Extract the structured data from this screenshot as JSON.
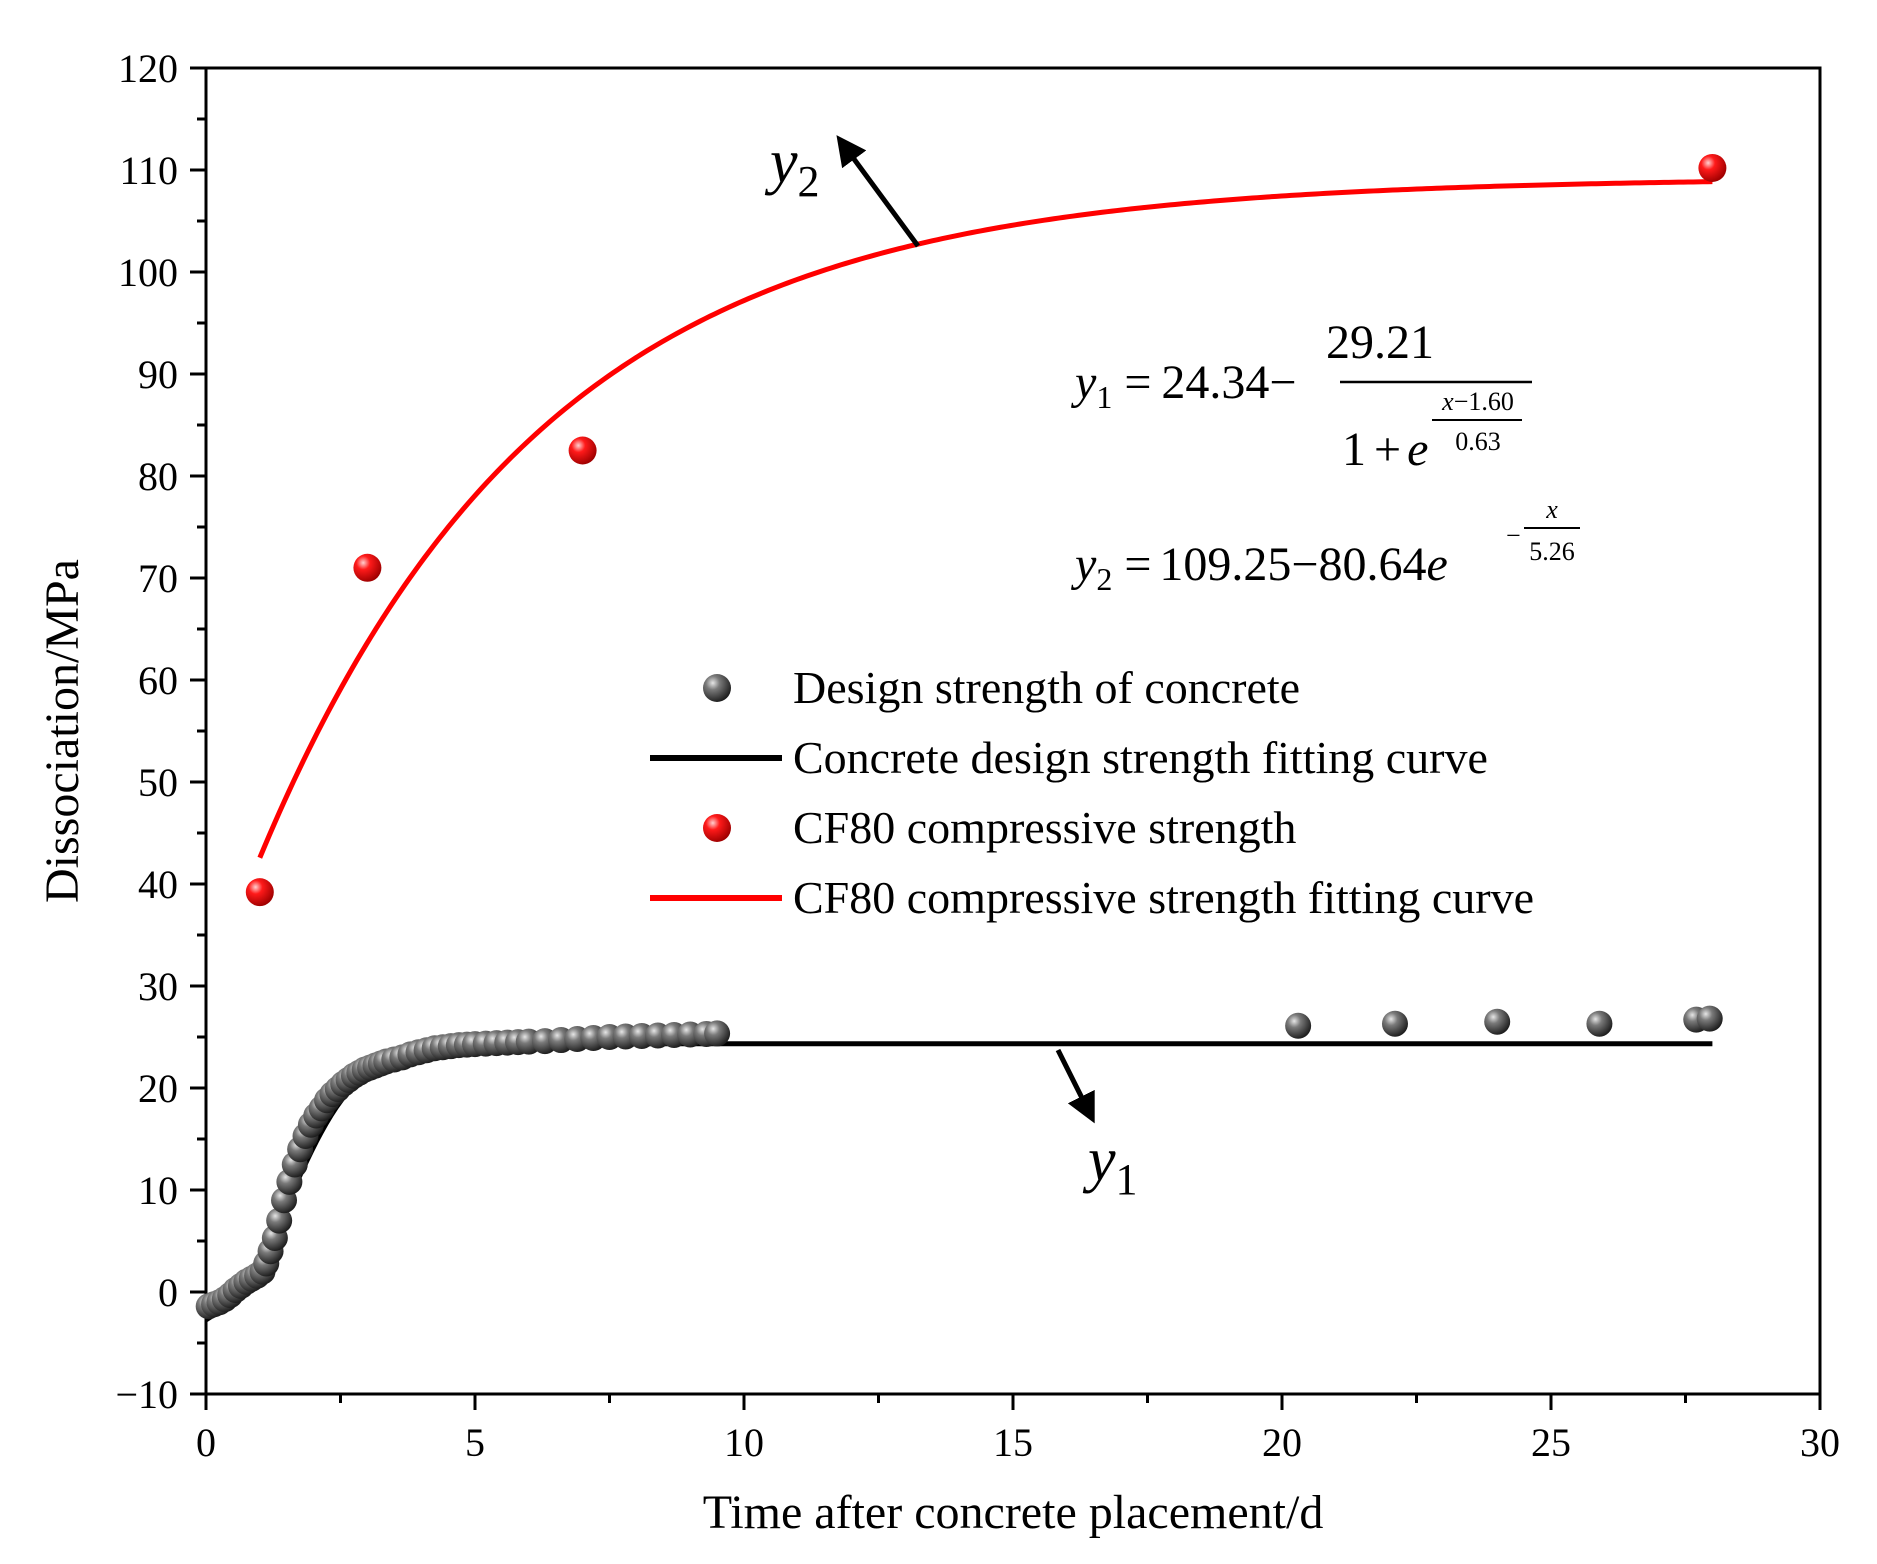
{
  "chart_data": {
    "type": "scatter",
    "xlabel": "Time after concrete placement/d",
    "ylabel": "Dissociation/MPa",
    "xlim": [
      0,
      30
    ],
    "ylim": [
      -10,
      120
    ],
    "xticks": [
      "0",
      "5",
      "10",
      "15",
      "20",
      "25",
      "30"
    ],
    "xtick_values": [
      0,
      5,
      10,
      15,
      20,
      25,
      30
    ],
    "yticks": [
      "−10",
      "0",
      "10",
      "20",
      "30",
      "40",
      "50",
      "60",
      "70",
      "80",
      "90",
      "100",
      "110",
      "120"
    ],
    "ytick_values": [
      -10,
      0,
      10,
      20,
      30,
      40,
      50,
      60,
      70,
      80,
      90,
      100,
      110,
      120
    ],
    "colors": {
      "design": "#3a3a3a",
      "cf80": "#ff0000",
      "axis": "#000000"
    },
    "series": [
      {
        "name": "Design strength of concrete",
        "kind": "points",
        "color": "#3a3a3a",
        "x": [
          0.05,
          0.15,
          0.25,
          0.35,
          0.45,
          0.55,
          0.65,
          0.75,
          0.85,
          0.95,
          1.05,
          1.12,
          1.2,
          1.28,
          1.36,
          1.45,
          1.55,
          1.65,
          1.75,
          1.85,
          1.95,
          2.05,
          2.15,
          2.25,
          2.35,
          2.45,
          2.55,
          2.65,
          2.75,
          2.85,
          2.95,
          3.05,
          3.15,
          3.25,
          3.35,
          3.5,
          3.65,
          3.8,
          3.95,
          4.1,
          4.25,
          4.4,
          4.55,
          4.7,
          4.85,
          5.0,
          5.2,
          5.4,
          5.6,
          5.8,
          6.0,
          6.3,
          6.6,
          6.9,
          7.2,
          7.5,
          7.8,
          8.1,
          8.4,
          8.7,
          9.0,
          9.3,
          9.5,
          20.3,
          22.1,
          24.0,
          25.9,
          27.7,
          27.95
        ],
        "y": [
          -1.4,
          -1.2,
          -1.0,
          -0.7,
          -0.3,
          0.2,
          0.6,
          1.0,
          1.3,
          1.6,
          2.0,
          2.8,
          4.0,
          5.3,
          7.0,
          9.0,
          10.8,
          12.5,
          14.0,
          15.3,
          16.4,
          17.3,
          18.0,
          18.8,
          19.4,
          19.9,
          20.4,
          20.8,
          21.2,
          21.5,
          21.8,
          22.0,
          22.2,
          22.4,
          22.6,
          22.8,
          23.0,
          23.3,
          23.5,
          23.7,
          23.9,
          24.0,
          24.1,
          24.2,
          24.25,
          24.3,
          24.35,
          24.4,
          24.45,
          24.5,
          24.55,
          24.6,
          24.7,
          24.8,
          24.9,
          25.0,
          25.05,
          25.1,
          25.15,
          25.2,
          25.25,
          25.3,
          25.35,
          26.1,
          26.3,
          26.5,
          26.3,
          26.7,
          26.8
        ]
      },
      {
        "name": "Concrete design strength fitting curve",
        "kind": "curve",
        "color": "#000000",
        "formula": "y1",
        "x_range": [
          0,
          28
        ]
      },
      {
        "name": "CF80 compressive strength",
        "kind": "points",
        "color": "#ff0000",
        "x": [
          1,
          3,
          7,
          28
        ],
        "y": [
          39.2,
          71.0,
          82.5,
          110.2
        ]
      },
      {
        "name": "CF80 compressive strength fitting curve",
        "kind": "curve",
        "color": "#ff0000",
        "formula": "y2",
        "x_range": [
          1,
          28
        ]
      }
    ],
    "fits": {
      "y1": {
        "a": 24.34,
        "b": 29.21,
        "c": 1.6,
        "d": 0.63
      },
      "y2": {
        "a": 109.25,
        "b": 80.64,
        "c": 5.26
      }
    },
    "legend": {
      "position": "center-right",
      "entries": [
        "Design strength of concrete",
        "Concrete design strength fitting curve",
        "CF80 compressive strength",
        "CF80 compressive strength fitting curve"
      ]
    },
    "annotations": {
      "y1_label": {
        "base": "y",
        "sub": "1"
      },
      "y2_label": {
        "base": "y",
        "sub": "2"
      },
      "eq1": {
        "lhs_base": "y",
        "lhs_sub": "1",
        "eq": "=",
        "a": "24.34",
        "minus": "−",
        "num": "29.21",
        "den_base": "1",
        "den_plus": "+",
        "den_e": "e",
        "exp_num_x": "x",
        "exp_num_rest": "−1.60",
        "exp_den": "0.63"
      },
      "eq2": {
        "lhs_base": "y",
        "lhs_sub": "2",
        "eq": "=",
        "a": "109.25",
        "minus": "−",
        "b": "80.64",
        "e": "e",
        "exp_minus": "−",
        "exp_num": "x",
        "exp_den": "5.26"
      }
    }
  }
}
